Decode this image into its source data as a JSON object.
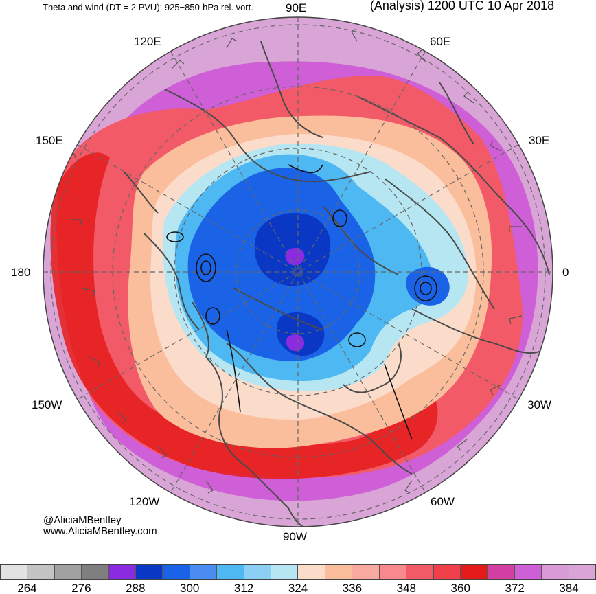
{
  "header": {
    "title_left": "Theta and wind (DT = 2 PVU); 925−850-hPa rel. vort.",
    "title_right": "(Analysis) 1200 UTC 10 Apr 2018"
  },
  "longitude_labels": [
    {
      "id": "lon-90e",
      "text": "90E"
    },
    {
      "id": "lon-60e",
      "text": "60E"
    },
    {
      "id": "lon-120e",
      "text": "120E"
    },
    {
      "id": "lon-30e",
      "text": "30E"
    },
    {
      "id": "lon-150e",
      "text": "150E"
    },
    {
      "id": "lon-180",
      "text": "180"
    },
    {
      "id": "lon-0",
      "text": "0"
    },
    {
      "id": "lon-150w",
      "text": "150W"
    },
    {
      "id": "lon-30w",
      "text": "30W"
    },
    {
      "id": "lon-120w",
      "text": "120W"
    },
    {
      "id": "lon-60w",
      "text": "60W"
    },
    {
      "id": "lon-90w",
      "text": "90W"
    }
  ],
  "credit": {
    "handle": "@AliciaMBentley",
    "url": "www.AliciaMBentley.com"
  },
  "colorbar": {
    "colors": [
      "#e2e2e2",
      "#c4c4c4",
      "#a1a1a1",
      "#7f7f7f",
      "#8a2be2",
      "#0a37c4",
      "#1a63e6",
      "#4a8cf0",
      "#4db8f2",
      "#8ccff5",
      "#b6e6f2",
      "#fbdccb",
      "#fbbe9c",
      "#f9a9a0",
      "#f7898c",
      "#f25a68",
      "#f0404c",
      "#e51b1b",
      "#d43fa4",
      "#cf5fd6",
      "#d99ad6",
      "#d9a5d6"
    ],
    "tick_labels": [
      "264",
      "276",
      "288",
      "300",
      "312",
      "324",
      "336",
      "348",
      "360",
      "372",
      "384"
    ]
  },
  "map_colors": {
    "background": "#d9a5d6",
    "outer_ring": "#cf5fd6",
    "warm_band": "#f25a68",
    "hot_band": "#e51b1b",
    "orange_band": "#fbbe9c",
    "peach_band": "#fbdccb",
    "light_blue": "#b6e6f2",
    "mid_blue": "#4db8f2",
    "blue": "#1a63e6",
    "deep_blue": "#0a37c4",
    "purple_core": "#8a2be2",
    "coast": "#4a4a4a",
    "grid": "#666666"
  }
}
